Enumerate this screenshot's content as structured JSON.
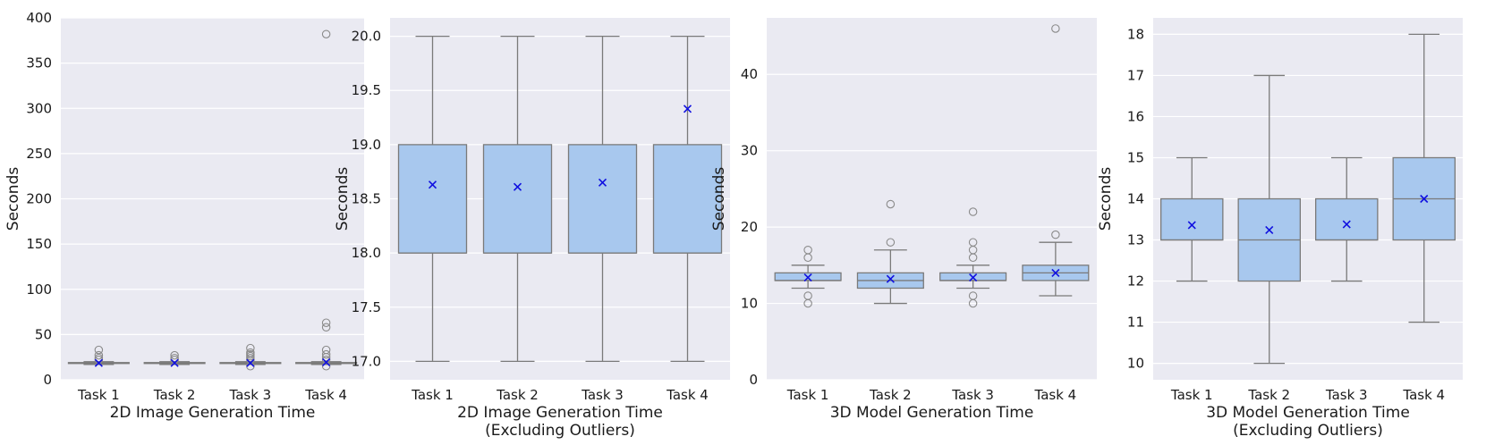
{
  "colors": {
    "background": "#eaeaf2",
    "box_fill": "#a8c8ee",
    "box_edge": "#7a7a7a",
    "mean_marker": "#1010e0",
    "outlier_edge": "#8a8a8a"
  },
  "chart_data": [
    {
      "type": "box",
      "xlabel": "2D Image Generation Time",
      "ylabel": "Seconds",
      "ylim": [
        0,
        400
      ],
      "yticks": [
        0,
        50,
        100,
        150,
        200,
        250,
        300,
        350,
        400
      ],
      "categories": [
        "Task 1",
        "Task 2",
        "Task 3",
        "Task 4"
      ],
      "boxes": [
        {
          "category": "Task 1",
          "whislo": 17,
          "q1": 18,
          "med": 18.5,
          "q3": 19,
          "whishi": 20,
          "mean": 18.6,
          "fliers": [
            22,
            24,
            27,
            33
          ]
        },
        {
          "category": "Task 2",
          "whislo": 17,
          "q1": 18,
          "med": 18.5,
          "q3": 19,
          "whishi": 20,
          "mean": 18.6,
          "fliers": [
            22,
            24,
            27
          ]
        },
        {
          "category": "Task 3",
          "whislo": 17,
          "q1": 18,
          "med": 18.5,
          "q3": 19,
          "whishi": 20,
          "mean": 18.6,
          "fliers": [
            15,
            22,
            24,
            26,
            28,
            30,
            35
          ]
        },
        {
          "category": "Task 4",
          "whislo": 17,
          "q1": 18,
          "med": 18.5,
          "q3": 19,
          "whishi": 20,
          "mean": 19.3,
          "fliers": [
            15,
            22,
            25,
            28,
            33,
            58,
            63,
            382
          ]
        }
      ]
    },
    {
      "type": "box",
      "xlabel": "2D Image Generation Time\n(Excluding Outliers)",
      "ylabel": "Seconds",
      "ylim": [
        16.83,
        20.17
      ],
      "yticks": [
        17.0,
        17.5,
        18.0,
        18.5,
        19.0,
        19.5,
        20.0
      ],
      "ytick_format": 1,
      "categories": [
        "Task 1",
        "Task 2",
        "Task 3",
        "Task 4"
      ],
      "boxes": [
        {
          "category": "Task 1",
          "whislo": 17,
          "q1": 18,
          "med": 18,
          "q3": 19,
          "whishi": 20,
          "mean": 18.63,
          "fliers": []
        },
        {
          "category": "Task 2",
          "whislo": 17,
          "q1": 18,
          "med": 18,
          "q3": 19,
          "whishi": 20,
          "mean": 18.61,
          "fliers": []
        },
        {
          "category": "Task 3",
          "whislo": 17,
          "q1": 18,
          "med": 18,
          "q3": 19,
          "whishi": 20,
          "mean": 18.65,
          "fliers": []
        },
        {
          "category": "Task 4",
          "whislo": 17,
          "q1": 18,
          "med": 18,
          "q3": 19,
          "whishi": 20,
          "mean": 19.33,
          "fliers": []
        }
      ]
    },
    {
      "type": "box",
      "xlabel": "3D Model Generation Time",
      "ylabel": "Seconds",
      "ylim": [
        0,
        47.4
      ],
      "yticks": [
        0,
        10,
        20,
        30,
        40
      ],
      "categories": [
        "Task 1",
        "Task 2",
        "Task 3",
        "Task 4"
      ],
      "boxes": [
        {
          "category": "Task 1",
          "whislo": 12,
          "q1": 13,
          "med": 13,
          "q3": 14,
          "whishi": 15,
          "mean": 13.4,
          "fliers": [
            10,
            11,
            16,
            17
          ]
        },
        {
          "category": "Task 2",
          "whislo": 10,
          "q1": 12,
          "med": 13,
          "q3": 14,
          "whishi": 17,
          "mean": 13.2,
          "fliers": [
            18,
            23
          ]
        },
        {
          "category": "Task 3",
          "whislo": 12,
          "q1": 13,
          "med": 13,
          "q3": 14,
          "whishi": 15,
          "mean": 13.4,
          "fliers": [
            10,
            11,
            16,
            17,
            18,
            22
          ]
        },
        {
          "category": "Task 4",
          "whislo": 11,
          "q1": 13,
          "med": 14,
          "q3": 15,
          "whishi": 18,
          "mean": 14.0,
          "fliers": [
            19,
            46
          ]
        }
      ]
    },
    {
      "type": "box",
      "xlabel": "3D Model Generation Time\n(Excluding Outliers)",
      "ylabel": "Seconds",
      "ylim": [
        9.6,
        18.4
      ],
      "yticks": [
        10,
        11,
        12,
        13,
        14,
        15,
        16,
        17,
        18
      ],
      "categories": [
        "Task 1",
        "Task 2",
        "Task 3",
        "Task 4"
      ],
      "boxes": [
        {
          "category": "Task 1",
          "whislo": 12,
          "q1": 13,
          "med": 13,
          "q3": 14,
          "whishi": 15,
          "mean": 13.36,
          "fliers": []
        },
        {
          "category": "Task 2",
          "whislo": 10,
          "q1": 12,
          "med": 13,
          "q3": 14,
          "whishi": 17,
          "mean": 13.24,
          "fliers": []
        },
        {
          "category": "Task 3",
          "whislo": 12,
          "q1": 13,
          "med": 13,
          "q3": 14,
          "whishi": 15,
          "mean": 13.38,
          "fliers": []
        },
        {
          "category": "Task 4",
          "whislo": 11,
          "q1": 13,
          "med": 14,
          "q3": 15,
          "whishi": 18,
          "mean": 14.0,
          "fliers": []
        }
      ]
    }
  ]
}
